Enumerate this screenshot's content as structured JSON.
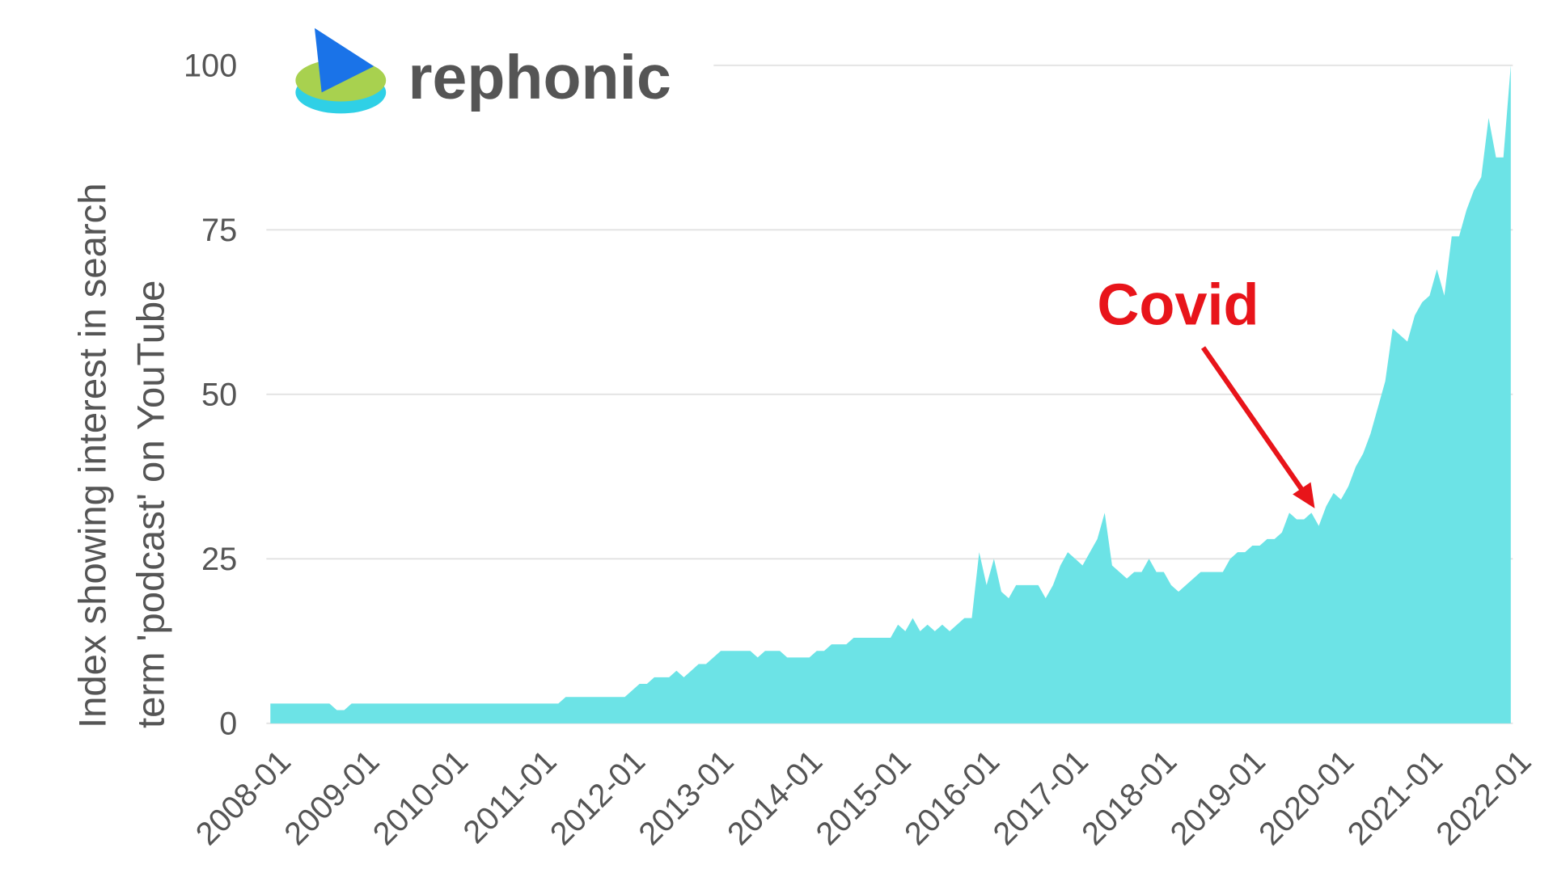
{
  "chart_data": {
    "type": "area",
    "brand": "rephonic",
    "annotation": "Covid",
    "y_label": [
      "Index showing interest in search",
      "term 'podcast' on YouTube"
    ],
    "color": "#6ce3e6",
    "ylim": [
      0,
      100
    ],
    "yticks": [
      0,
      25,
      50,
      75,
      100
    ],
    "grid": true,
    "xticks": [
      "2008-01",
      "2009-01",
      "2010-01",
      "2011-01",
      "2012-01",
      "2013-01",
      "2014-01",
      "2015-01",
      "2016-01",
      "2017-01",
      "2018-01",
      "2019-01",
      "2020-01",
      "2021-01",
      "2022-01"
    ],
    "x": [
      "2008-01",
      "2008-02",
      "2008-03",
      "2008-04",
      "2008-05",
      "2008-06",
      "2008-07",
      "2008-08",
      "2008-09",
      "2008-10",
      "2008-11",
      "2008-12",
      "2009-01",
      "2009-02",
      "2009-03",
      "2009-04",
      "2009-05",
      "2009-06",
      "2009-07",
      "2009-08",
      "2009-09",
      "2009-10",
      "2009-11",
      "2009-12",
      "2010-01",
      "2010-02",
      "2010-03",
      "2010-04",
      "2010-05",
      "2010-06",
      "2010-07",
      "2010-08",
      "2010-09",
      "2010-10",
      "2010-11",
      "2010-12",
      "2011-01",
      "2011-02",
      "2011-03",
      "2011-04",
      "2011-05",
      "2011-06",
      "2011-07",
      "2011-08",
      "2011-09",
      "2011-10",
      "2011-11",
      "2011-12",
      "2012-01",
      "2012-02",
      "2012-03",
      "2012-04",
      "2012-05",
      "2012-06",
      "2012-07",
      "2012-08",
      "2012-09",
      "2012-10",
      "2012-11",
      "2012-12",
      "2013-01",
      "2013-02",
      "2013-03",
      "2013-04",
      "2013-05",
      "2013-06",
      "2013-07",
      "2013-08",
      "2013-09",
      "2013-10",
      "2013-11",
      "2013-12",
      "2014-01",
      "2014-02",
      "2014-03",
      "2014-04",
      "2014-05",
      "2014-06",
      "2014-07",
      "2014-08",
      "2014-09",
      "2014-10",
      "2014-11",
      "2014-12",
      "2015-01",
      "2015-02",
      "2015-03",
      "2015-04",
      "2015-05",
      "2015-06",
      "2015-07",
      "2015-08",
      "2015-09",
      "2015-10",
      "2015-11",
      "2015-12",
      "2016-01",
      "2016-02",
      "2016-03",
      "2016-04",
      "2016-05",
      "2016-06",
      "2016-07",
      "2016-08",
      "2016-09",
      "2016-10",
      "2016-11",
      "2016-12",
      "2017-01",
      "2017-02",
      "2017-03",
      "2017-04",
      "2017-05",
      "2017-06",
      "2017-07",
      "2017-08",
      "2017-09",
      "2017-10",
      "2017-11",
      "2017-12",
      "2018-01",
      "2018-02",
      "2018-03",
      "2018-04",
      "2018-05",
      "2018-06",
      "2018-07",
      "2018-08",
      "2018-09",
      "2018-10",
      "2018-11",
      "2018-12",
      "2019-01",
      "2019-02",
      "2019-03",
      "2019-04",
      "2019-05",
      "2019-06",
      "2019-07",
      "2019-08",
      "2019-09",
      "2019-10",
      "2019-11",
      "2019-12",
      "2020-01",
      "2020-02",
      "2020-03",
      "2020-04",
      "2020-05",
      "2020-06",
      "2020-07",
      "2020-08",
      "2020-09",
      "2020-10",
      "2020-11",
      "2020-12",
      "2021-01",
      "2021-02",
      "2021-03",
      "2021-04",
      "2021-05",
      "2021-06",
      "2021-07",
      "2021-08",
      "2021-09",
      "2021-10",
      "2021-11",
      "2021-12",
      "2022-01"
    ],
    "values": [
      3,
      3,
      3,
      3,
      3,
      3,
      3,
      3,
      3,
      2,
      2,
      3,
      3,
      3,
      3,
      3,
      3,
      3,
      3,
      3,
      3,
      3,
      3,
      3,
      3,
      3,
      3,
      3,
      3,
      3,
      3,
      3,
      3,
      3,
      3,
      3,
      3,
      3,
      3,
      3,
      4,
      4,
      4,
      4,
      4,
      4,
      4,
      4,
      4,
      5,
      6,
      6,
      7,
      7,
      7,
      8,
      7,
      8,
      9,
      9,
      10,
      11,
      11,
      11,
      11,
      11,
      10,
      11,
      11,
      11,
      10,
      10,
      10,
      10,
      11,
      11,
      12,
      12,
      12,
      13,
      13,
      13,
      13,
      13,
      13,
      15,
      14,
      16,
      14,
      15,
      14,
      15,
      14,
      15,
      16,
      16,
      26,
      21,
      25,
      20,
      19,
      21,
      21,
      21,
      21,
      19,
      21,
      24,
      26,
      25,
      24,
      26,
      28,
      32,
      24,
      23,
      22,
      23,
      23,
      25,
      23,
      23,
      21,
      20,
      21,
      22,
      23,
      23,
      23,
      23,
      25,
      26,
      26,
      27,
      27,
      28,
      28,
      29,
      32,
      31,
      31,
      32,
      30,
      33,
      35,
      34,
      36,
      39,
      41,
      44,
      48,
      52,
      60,
      59,
      58,
      62,
      64,
      65,
      69,
      65,
      74,
      74,
      78,
      81,
      83,
      92,
      86,
      86,
      100
    ]
  }
}
